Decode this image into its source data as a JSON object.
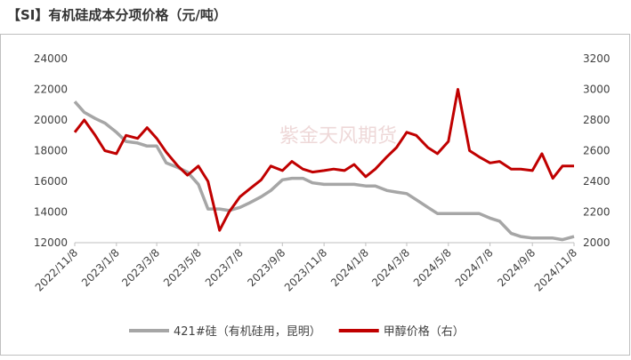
{
  "chart_data": {
    "type": "line",
    "title": "【SI】有机硅成本分项价格（元/吨）",
    "watermark": "紫金天风期货",
    "x": [
      "2022/11/8",
      "2022/11/22",
      "2022/12/8",
      "2022/12/22",
      "2023/1/8",
      "2023/1/22",
      "2023/2/8",
      "2023/2/22",
      "2023/3/8",
      "2023/3/22",
      "2023/4/8",
      "2023/4/22",
      "2023/5/8",
      "2023/5/22",
      "2023/6/8",
      "2023/6/22",
      "2023/7/8",
      "2023/7/22",
      "2023/8/8",
      "2023/8/22",
      "2023/9/8",
      "2023/9/22",
      "2023/10/8",
      "2023/10/22",
      "2023/11/8",
      "2023/11/22",
      "2023/12/8",
      "2023/12/22",
      "2024/1/8",
      "2024/1/22",
      "2024/2/8",
      "2024/2/22",
      "2024/3/8",
      "2024/3/22",
      "2024/4/8",
      "2024/4/22",
      "2024/5/8",
      "2024/5/22",
      "2024/6/8",
      "2024/6/22",
      "2024/7/8",
      "2024/7/22",
      "2024/8/8",
      "2024/8/22",
      "2024/9/8",
      "2024/9/22",
      "2024/10/8",
      "2024/10/22",
      "2024/11/8"
    ],
    "xticks": [
      "2022/11/8",
      "2023/1/8",
      "2023/3/8",
      "2023/5/8",
      "2023/7/8",
      "2023/9/8",
      "2023/11/8",
      "2024/1/8",
      "2024/3/8",
      "2024/5/8",
      "2024/7/8",
      "2024/9/8",
      "2024/11/8"
    ],
    "series": [
      {
        "name": "421#硅（有机硅用，昆明）",
        "color": "#a6a6a6",
        "axis": "y",
        "values": [
          21200,
          20500,
          20100,
          19800,
          19200,
          18600,
          18500,
          18300,
          18300,
          17200,
          16900,
          16600,
          15800,
          14200,
          14200,
          14100,
          14300,
          14600,
          15000,
          15400,
          16100,
          16200,
          16200,
          15900,
          15800,
          15800,
          15800,
          15800,
          15700,
          15700,
          15400,
          15300,
          15200,
          14800,
          14300,
          13900,
          13900,
          13900,
          13900,
          13900,
          13600,
          13400,
          12600,
          12400,
          12300,
          12300,
          12300,
          12200,
          12400
        ]
      },
      {
        "name": "甲醇价格（右）",
        "color": "#c00000",
        "axis": "y2",
        "values": [
          2720,
          2800,
          2700,
          2600,
          2580,
          2700,
          2680,
          2750,
          2680,
          2590,
          2500,
          2440,
          2500,
          2400,
          2080,
          2200,
          2300,
          2350,
          2410,
          2500,
          2470,
          2530,
          2480,
          2460,
          2470,
          2480,
          2470,
          2510,
          2430,
          2480,
          2560,
          2620,
          2720,
          2700,
          2620,
          2580,
          2660,
          3000,
          2600,
          2560,
          2520,
          2530,
          2480,
          2480,
          2470,
          2580,
          2420,
          2500,
          2500
        ]
      }
    ],
    "ylim": [
      12000,
      24000
    ],
    "yticks": [
      12000,
      14000,
      16000,
      18000,
      20000,
      22000,
      24000
    ],
    "y2lim": [
      2000,
      3200
    ],
    "y2ticks": [
      2000,
      2200,
      2400,
      2600,
      2800,
      3000,
      3200
    ],
    "legend": "bottom"
  }
}
